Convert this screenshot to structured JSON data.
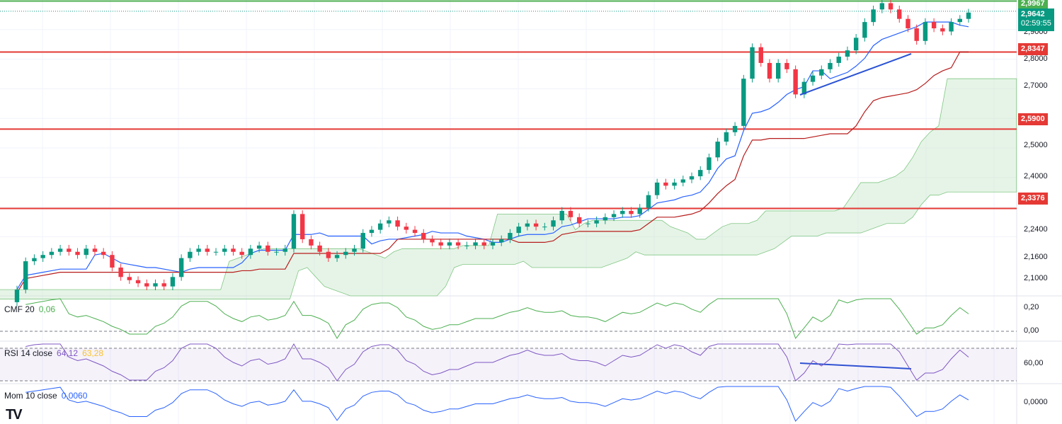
{
  "chart_data": {
    "type": "candlestick",
    "price_scale": {
      "ylim": [
        2.06,
        3.0
      ],
      "ticks": [
        "2,9000",
        "2,8000",
        "2,7000",
        "2,5000",
        "2,4000",
        "2,2400",
        "2,1600",
        "2,1000"
      ]
    },
    "horizontal_levels": [
      {
        "value": 2.9967,
        "label": "2,9967",
        "color": "#4caf50"
      },
      {
        "value": 2.8347,
        "label": "2,8347",
        "color": "#e53935"
      },
      {
        "value": 2.59,
        "label": "2,5900",
        "color": "#e53935"
      },
      {
        "value": 2.3376,
        "label": "2,3376",
        "color": "#e53935"
      }
    ],
    "last_price": {
      "value": 2.9642,
      "label": "2,9642",
      "countdown": "02:59:55",
      "color": "#089981"
    },
    "candles_close": [
      2.08,
      2.17,
      2.18,
      2.19,
      2.2,
      2.21,
      2.2,
      2.19,
      2.21,
      2.2,
      2.19,
      2.15,
      2.12,
      2.11,
      2.1,
      2.09,
      2.1,
      2.09,
      2.12,
      2.18,
      2.2,
      2.21,
      2.2,
      2.2,
      2.21,
      2.2,
      2.19,
      2.21,
      2.22,
      2.2,
      2.2,
      2.21,
      2.32,
      2.24,
      2.22,
      2.2,
      2.18,
      2.19,
      2.2,
      2.21,
      2.26,
      2.27,
      2.29,
      2.3,
      2.28,
      2.27,
      2.26,
      2.24,
      2.23,
      2.22,
      2.23,
      2.22,
      2.22,
      2.23,
      2.22,
      2.23,
      2.24,
      2.26,
      2.28,
      2.29,
      2.28,
      2.28,
      2.3,
      2.33,
      2.31,
      2.29,
      2.29,
      2.3,
      2.31,
      2.32,
      2.33,
      2.32,
      2.34,
      2.38,
      2.42,
      2.41,
      2.42,
      2.43,
      2.44,
      2.46,
      2.5,
      2.55,
      2.58,
      2.6,
      2.75,
      2.85,
      2.8,
      2.75,
      2.8,
      2.78,
      2.7,
      2.74,
      2.76,
      2.78,
      2.8,
      2.82,
      2.84,
      2.88,
      2.93,
      2.97,
      2.99,
      2.97,
      2.94,
      2.91,
      2.87,
      2.93,
      2.91,
      2.9,
      2.93,
      2.94,
      2.96
    ],
    "candles_open": [
      2.04,
      2.08,
      2.17,
      2.18,
      2.19,
      2.2,
      2.21,
      2.2,
      2.19,
      2.21,
      2.2,
      2.19,
      2.15,
      2.12,
      2.11,
      2.1,
      2.09,
      2.1,
      2.09,
      2.12,
      2.18,
      2.2,
      2.21,
      2.2,
      2.2,
      2.21,
      2.2,
      2.19,
      2.21,
      2.22,
      2.2,
      2.2,
      2.21,
      2.32,
      2.24,
      2.22,
      2.2,
      2.18,
      2.19,
      2.2,
      2.21,
      2.26,
      2.27,
      2.29,
      2.3,
      2.28,
      2.27,
      2.26,
      2.24,
      2.23,
      2.22,
      2.23,
      2.22,
      2.22,
      2.23,
      2.22,
      2.23,
      2.24,
      2.26,
      2.28,
      2.29,
      2.28,
      2.28,
      2.3,
      2.33,
      2.31,
      2.29,
      2.29,
      2.3,
      2.31,
      2.32,
      2.33,
      2.32,
      2.34,
      2.38,
      2.42,
      2.41,
      2.42,
      2.43,
      2.44,
      2.46,
      2.5,
      2.55,
      2.58,
      2.6,
      2.75,
      2.85,
      2.8,
      2.75,
      2.8,
      2.78,
      2.7,
      2.74,
      2.76,
      2.78,
      2.8,
      2.82,
      2.84,
      2.88,
      2.93,
      2.97,
      2.99,
      2.97,
      2.94,
      2.91,
      2.87,
      2.93,
      2.91,
      2.9,
      2.93,
      2.94
    ],
    "axis_ticks_cmf": [
      "0,20",
      "0,00"
    ],
    "axis_ticks_rsi": [
      "60,00"
    ],
    "axis_ticks_mom": [
      "0,0000"
    ]
  },
  "indicators": {
    "cmf": {
      "name": "CMF 20",
      "value": "0,06",
      "color": "#4caf50"
    },
    "rsi": {
      "name": "RSI 14 close",
      "value": "64,12",
      "value2": "63,28",
      "color": "#7e57c2",
      "color2": "#f9c22e"
    },
    "mom": {
      "name": "Mom 10 close",
      "value": "0,0060",
      "color": "#2962ff"
    }
  },
  "colors": {
    "up": "#089981",
    "down": "#f23645",
    "tenkan": "#2962ff",
    "kijun": "#b71c1c",
    "cloud_up": "#c8e6c9",
    "cloud_down": "#ffcdd2",
    "trendline": "#2a52d4"
  }
}
